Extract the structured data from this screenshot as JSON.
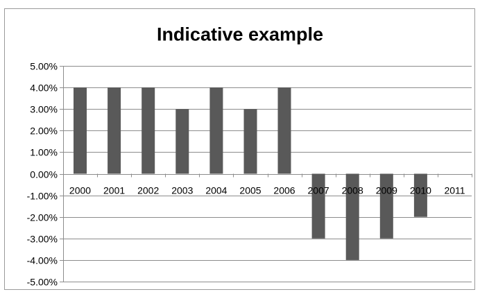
{
  "chart_data": {
    "type": "bar",
    "title": "Indicative example",
    "xlabel": "",
    "ylabel": "",
    "categories": [
      "2000",
      "2001",
      "2002",
      "2003",
      "2004",
      "2005",
      "2006",
      "2007",
      "2008",
      "2009",
      "2010",
      "2011"
    ],
    "values": [
      4,
      4,
      4,
      3,
      4,
      3,
      4,
      -3,
      -4,
      -3,
      -2,
      0
    ],
    "ylim": [
      -5,
      5
    ],
    "y_ticks": [
      5,
      4,
      3,
      2,
      1,
      0,
      -1,
      -2,
      -3,
      -4,
      -5
    ],
    "y_tick_labels": [
      "5.00%",
      "4.00%",
      "3.00%",
      "2.00%",
      "1.00%",
      "0.00%",
      "-1.00%",
      "-2.00%",
      "-3.00%",
      "-4.00%",
      "-5.00%"
    ],
    "y_format": "percent",
    "grid": true,
    "legend": "none",
    "bar_color": "#595959",
    "grid_color": "#8c8c8c"
  }
}
